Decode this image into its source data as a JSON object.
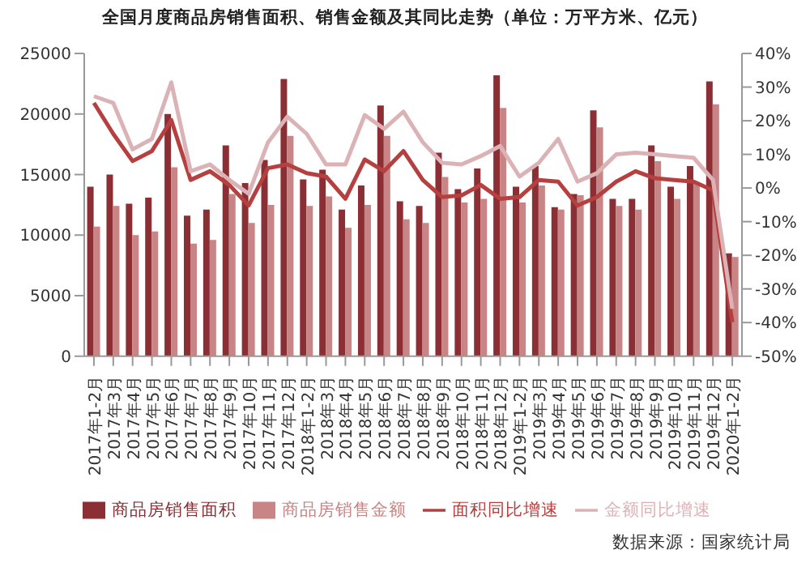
{
  "chart_data": {
    "type": "bar",
    "title": "全国月度商品房销售面积、销售金额及其同比走势（单位：万平方米、亿元）",
    "categories": [
      "2017年1-2月",
      "2017年3月",
      "2017年4月",
      "2017年5月",
      "2017年6月",
      "2017年7月",
      "2017年8月",
      "2017年9月",
      "2017年10月",
      "2017年11月",
      "2017年12月",
      "2018年1-2月",
      "2018年3月",
      "2018年4月",
      "2018年5月",
      "2018年6月",
      "2018年7月",
      "2018年8月",
      "2018年9月",
      "2018年10月",
      "2018年11月",
      "2018年12月",
      "2019年1-2月",
      "2019年3月",
      "2019年4月",
      "2019年5月",
      "2019年6月",
      "2019年7月",
      "2019年8月",
      "2019年9月",
      "2019年10月",
      "2019年11月",
      "2019年12月",
      "2020年1-2月"
    ],
    "series": [
      {
        "name": "商品房销售面积",
        "color": "#8b2f34",
        "values": [
          14000,
          15000,
          12600,
          13100,
          20000,
          11600,
          12100,
          17400,
          14300,
          16200,
          22900,
          14600,
          15400,
          12100,
          14100,
          20700,
          12800,
          12400,
          16800,
          13800,
          15500,
          23200,
          14000,
          15700,
          12300,
          13400,
          20300,
          13000,
          13000,
          17400,
          14000,
          15700,
          22700,
          8500
        ]
      },
      {
        "name": "商品房销售金额",
        "color": "#c98585",
        "values": [
          10700,
          12400,
          10000,
          10300,
          15600,
          9300,
          9600,
          13400,
          11000,
          12500,
          18200,
          12400,
          13200,
          10600,
          12500,
          18200,
          11300,
          11000,
          14800,
          12700,
          13000,
          20500,
          12700,
          14100,
          12100,
          13300,
          18900,
          12400,
          12100,
          16100,
          13000,
          14300,
          20800,
          8200
        ]
      },
      {
        "name": "面积同比增速",
        "type": "line",
        "axis": "y2",
        "color": "#b5403f",
        "values": [
          25.3,
          16.1,
          8.0,
          11.0,
          20.2,
          2.4,
          5.0,
          0.9,
          -5.2,
          5.9,
          7.0,
          4.4,
          3.4,
          -3.2,
          8.5,
          5.0,
          11.0,
          2.4,
          -2.7,
          -2.2,
          0.9,
          -3.2,
          -2.7,
          2.4,
          1.9,
          -5.2,
          -2.7,
          1.9,
          5.0,
          2.9,
          2.4,
          1.9,
          -0.7,
          -39.9
        ]
      },
      {
        "name": "金额同比增速",
        "type": "line",
        "axis": "y2",
        "color": "#dbb3b6",
        "values": [
          27.3,
          25.3,
          11.5,
          14.6,
          31.4,
          5.0,
          7.0,
          2.4,
          -1.7,
          13.6,
          21.2,
          16.1,
          7.0,
          7.0,
          21.7,
          17.6,
          22.7,
          13.6,
          7.5,
          7.0,
          9.5,
          12.5,
          3.4,
          7.5,
          14.6,
          1.9,
          4.4,
          10.0,
          10.5,
          10.0,
          9.5,
          9.0,
          2.4,
          -35.9
        ]
      }
    ],
    "ylim": [
      0,
      25000
    ],
    "yticks": [
      0,
      5000,
      10000,
      15000,
      20000,
      25000
    ],
    "y2lim": [
      -50,
      40
    ],
    "y2ticks": [
      {
        "value": -50,
        "label": "-50%"
      },
      {
        "value": -40,
        "label": "-40%"
      },
      {
        "value": -30,
        "label": "-30%"
      },
      {
        "value": -20,
        "label": "-20%"
      },
      {
        "value": -10,
        "label": "-10%"
      },
      {
        "value": 0,
        "label": "0%"
      },
      {
        "value": 10,
        "label": "10%"
      },
      {
        "value": 20,
        "label": "20%"
      },
      {
        "value": 30,
        "label": "30%"
      },
      {
        "value": 40,
        "label": "40%"
      }
    ],
    "marker": "none",
    "grid": false,
    "legend": "bottom",
    "annotations": [
      "数据来源：国家统计局"
    ]
  }
}
